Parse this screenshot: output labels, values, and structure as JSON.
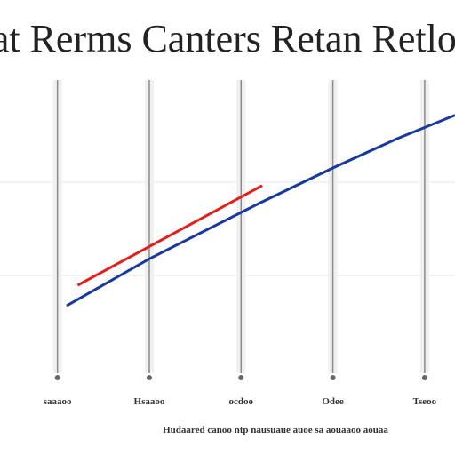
{
  "chart_data": {
    "type": "line",
    "title": "Eat Rerms Canters Retan Retlom",
    "footnote": "Hudaared canoo ntp nausuaue auoe sa aouaaoo aouaa",
    "xlim": [
      -0.2,
      4.33
    ],
    "xticks": [
      {
        "value": 0,
        "label": "saaaoo"
      },
      {
        "value": 1,
        "label": "Hsaaoo"
      },
      {
        "value": 2,
        "label": "ocdoo"
      },
      {
        "value": 3,
        "label": "Odee"
      },
      {
        "value": 4,
        "label": "Tseoo"
      }
    ],
    "ylim": [
      0,
      100
    ],
    "series": [
      {
        "name": "Red",
        "color": "#e0201c",
        "x": [
          0.22,
          2.23
        ],
        "values": [
          30,
          64
        ]
      },
      {
        "name": "Blue",
        "color": "#1a3a9a",
        "x": [
          0.1,
          1.0,
          2.2,
          3.0,
          3.7,
          4.33
        ],
        "values": [
          23,
          39,
          58,
          70,
          80,
          88
        ]
      }
    ]
  }
}
